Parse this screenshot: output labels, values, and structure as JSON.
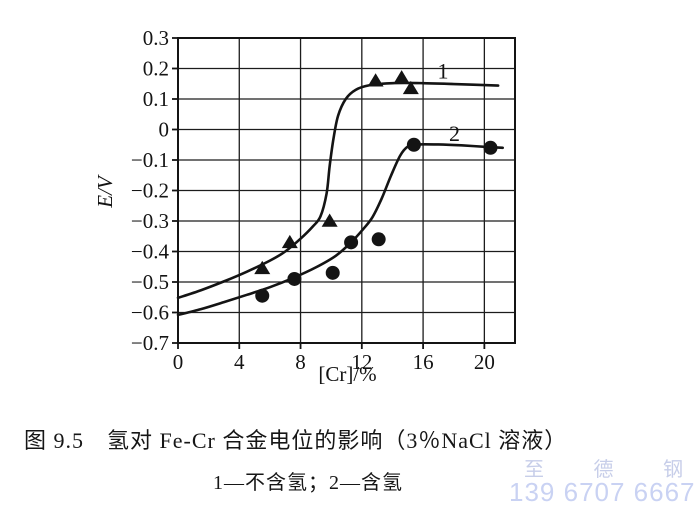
{
  "chart_data": {
    "type": "line",
    "title": "图 9.5　氢对 Fe-Cr 合金电位的影响（3％NaCl 溶液）",
    "subtitle": "1—不含氢；2—含氢",
    "xlabel": "[Cr]/%",
    "ylabel": "E/V",
    "xlim": [
      0,
      22
    ],
    "ylim": [
      -0.7,
      0.3
    ],
    "xticks": [
      0,
      4,
      8,
      12,
      16,
      20
    ],
    "xtick_labels": [
      "0",
      "4",
      "8",
      "12",
      "16",
      "20"
    ],
    "yticks": [
      0.3,
      0.2,
      0.1,
      0,
      -0.1,
      -0.2,
      -0.3,
      -0.4,
      -0.5,
      -0.6,
      -0.7
    ],
    "ytick_labels": [
      "0.3",
      "0.2",
      "0.1",
      "0",
      "−0.1",
      "−0.2",
      "−0.3",
      "−0.4",
      "−0.5",
      "−0.6",
      "−0.7"
    ],
    "grid": true,
    "legend_position": "inline-curve-labels",
    "series": [
      {
        "name": "1",
        "label": "不含氢",
        "marker": "triangle",
        "label_xy": [
          17.3,
          0.19
        ],
        "points": [
          [
            5.5,
            -0.455
          ],
          [
            7.3,
            -0.37
          ],
          [
            9.9,
            -0.3
          ],
          [
            12.9,
            0.16
          ],
          [
            14.6,
            0.17
          ],
          [
            15.2,
            0.135
          ]
        ],
        "curve": [
          [
            0,
            -0.552
          ],
          [
            1.5,
            -0.527
          ],
          [
            3,
            -0.498
          ],
          [
            4.5,
            -0.466
          ],
          [
            6,
            -0.43
          ],
          [
            7,
            -0.4
          ],
          [
            8,
            -0.358
          ],
          [
            8.8,
            -0.318
          ],
          [
            9.3,
            -0.285
          ],
          [
            9.7,
            -0.21
          ],
          [
            9.9,
            -0.12
          ],
          [
            10.15,
            -0.03
          ],
          [
            10.45,
            0.045
          ],
          [
            10.95,
            0.1
          ],
          [
            11.6,
            0.13
          ],
          [
            12.5,
            0.145
          ],
          [
            14,
            0.152
          ],
          [
            16,
            0.152
          ],
          [
            18,
            0.149
          ],
          [
            20.9,
            0.144
          ]
        ]
      },
      {
        "name": "2",
        "label": "含氢",
        "marker": "circle",
        "label_xy": [
          18.05,
          -0.015
        ],
        "points": [
          [
            5.5,
            -0.545
          ],
          [
            7.6,
            -0.49
          ],
          [
            10.1,
            -0.47
          ],
          [
            11.3,
            -0.37
          ],
          [
            13.1,
            -0.36
          ],
          [
            15.4,
            -0.05
          ],
          [
            20.4,
            -0.06
          ]
        ],
        "curve": [
          [
            0,
            -0.608
          ],
          [
            1.5,
            -0.589
          ],
          [
            3,
            -0.566
          ],
          [
            4.5,
            -0.542
          ],
          [
            6,
            -0.517
          ],
          [
            7.5,
            -0.487
          ],
          [
            9,
            -0.452
          ],
          [
            10.3,
            -0.414
          ],
          [
            11.3,
            -0.37
          ],
          [
            12.1,
            -0.326
          ],
          [
            12.7,
            -0.287
          ],
          [
            13.3,
            -0.226
          ],
          [
            13.9,
            -0.152
          ],
          [
            14.5,
            -0.086
          ],
          [
            15.0,
            -0.056
          ],
          [
            15.6,
            -0.049
          ],
          [
            17,
            -0.049
          ],
          [
            18.5,
            -0.052
          ],
          [
            20.4,
            -0.058
          ],
          [
            21.2,
            -0.06
          ]
        ]
      }
    ]
  },
  "watermark": {
    "line1": "至 德 钢 业",
    "line2": "139 6707 6667",
    "color1": "#c7cee9",
    "color2": "#c9d2f3"
  },
  "colors": {
    "ink": "#141414",
    "grid": "#1c1c1c",
    "background": "#ffffff"
  }
}
